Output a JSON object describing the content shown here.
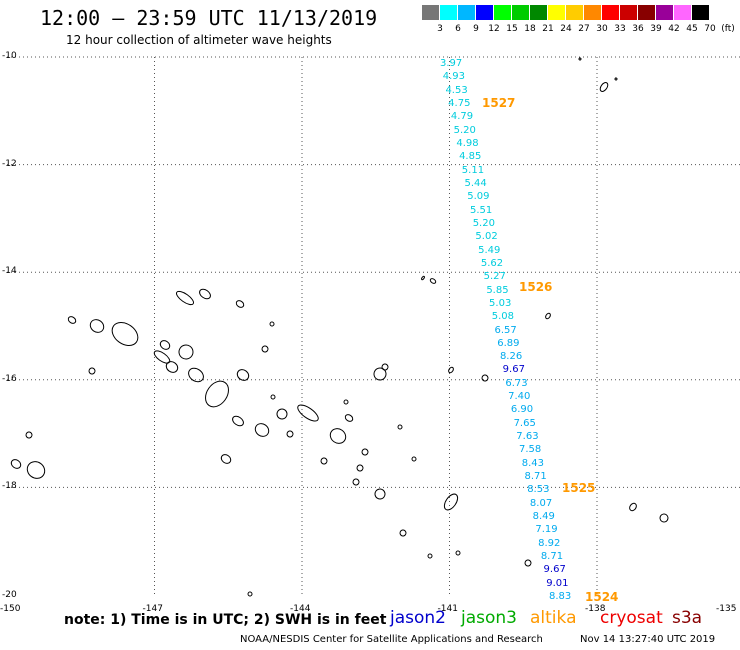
{
  "header": {
    "title": "12:00 – 23:59 UTC 11/13/2019",
    "subtitle": "12 hour collection of altimeter wave heights"
  },
  "legend": {
    "unit": "(ft)",
    "swatches": [
      {
        "color": "#777777",
        "label": "3"
      },
      {
        "color": "#00ffff",
        "label": "6"
      },
      {
        "color": "#00b7ff",
        "label": "9"
      },
      {
        "color": "#0000ff",
        "label": "12"
      },
      {
        "color": "#00ff00",
        "label": "15"
      },
      {
        "color": "#00cc00",
        "label": "18"
      },
      {
        "color": "#008800",
        "label": "21"
      },
      {
        "color": "#ffff00",
        "label": "24"
      },
      {
        "color": "#ffcc00",
        "label": "27"
      },
      {
        "color": "#ff8800",
        "label": "30"
      },
      {
        "color": "#ff0000",
        "label": "33"
      },
      {
        "color": "#cc0000",
        "label": "36"
      },
      {
        "color": "#880000",
        "label": "39"
      },
      {
        "color": "#990099",
        "label": "42"
      },
      {
        "color": "#ff66ff",
        "label": "45"
      },
      {
        "color": "#000000",
        "label": "70"
      }
    ]
  },
  "axes": {
    "lat_labels": [
      "-10",
      "-12",
      "-14",
      "-16",
      "-18",
      "-20"
    ],
    "lon_labels": [
      "-150",
      "-147",
      "-144",
      "-141",
      "-138",
      "-135"
    ]
  },
  "track": {
    "readings": [
      {
        "v": "3.97",
        "c": "#00ccdd"
      },
      {
        "v": "4.93",
        "c": "#00ccdd"
      },
      {
        "v": "4.53",
        "c": "#00ccdd"
      },
      {
        "v": "4.75",
        "c": "#00ccdd"
      },
      {
        "v": "4.79",
        "c": "#00ccdd"
      },
      {
        "v": "5.20",
        "c": "#00ccdd"
      },
      {
        "v": "4.98",
        "c": "#00ccdd"
      },
      {
        "v": "4.85",
        "c": "#00ccdd"
      },
      {
        "v": "5.11",
        "c": "#00ccdd"
      },
      {
        "v": "5.44",
        "c": "#00ccdd"
      },
      {
        "v": "5.09",
        "c": "#00ccdd"
      },
      {
        "v": "5.51",
        "c": "#00ccdd"
      },
      {
        "v": "5.20",
        "c": "#00ccdd"
      },
      {
        "v": "5.02",
        "c": "#00ccdd"
      },
      {
        "v": "5.49",
        "c": "#00ccdd"
      },
      {
        "v": "5.62",
        "c": "#00ccdd"
      },
      {
        "v": "5.27",
        "c": "#00ccdd"
      },
      {
        "v": "5.85",
        "c": "#00ccdd"
      },
      {
        "v": "5.03",
        "c": "#00ccdd"
      },
      {
        "v": "5.08",
        "c": "#00ccdd"
      },
      {
        "v": "6.57",
        "c": "#00aaee"
      },
      {
        "v": "6.89",
        "c": "#00aaee"
      },
      {
        "v": "8.26",
        "c": "#00aaee"
      },
      {
        "v": "9.67",
        "c": "#0000cc"
      },
      {
        "v": "6.73",
        "c": "#00aaee"
      },
      {
        "v": "7.40",
        "c": "#00aaee"
      },
      {
        "v": "6.90",
        "c": "#00aaee"
      },
      {
        "v": "7.65",
        "c": "#00aaee"
      },
      {
        "v": "7.63",
        "c": "#00aaee"
      },
      {
        "v": "7.58",
        "c": "#00aaee"
      },
      {
        "v": "8.43",
        "c": "#00aaee"
      },
      {
        "v": "8.71",
        "c": "#00aaee"
      },
      {
        "v": "8.53",
        "c": "#00aaee"
      },
      {
        "v": "8.07",
        "c": "#00aaee"
      },
      {
        "v": "8.49",
        "c": "#00aaee"
      },
      {
        "v": "7.19",
        "c": "#00aaee"
      },
      {
        "v": "8.92",
        "c": "#00aaee"
      },
      {
        "v": "8.71",
        "c": "#00aaee"
      },
      {
        "v": "9.67",
        "c": "#0000cc"
      },
      {
        "v": "9.01",
        "c": "#0000cc"
      },
      {
        "v": "8.83",
        "c": "#00aaee"
      }
    ],
    "pass_numbers": [
      "1527",
      "1526",
      "1525",
      "1524"
    ]
  },
  "note": "note: 1) Time is in UTC; 2) SWH is in feet",
  "satellites": [
    {
      "name": "jason2",
      "color": "#0000cc"
    },
    {
      "name": "jason3",
      "color": "#00aa00"
    },
    {
      "name": "altika",
      "color": "#ff9900"
    },
    {
      "name": "cryosat",
      "color": "#ee0000"
    },
    {
      "name": "s3a",
      "color": "#880000"
    }
  ],
  "footer": {
    "credit": "NOAA/NESDIS Center for Satellite Applications and Research",
    "timestamp": "Nov 14 13:27:40 UTC 2019"
  }
}
